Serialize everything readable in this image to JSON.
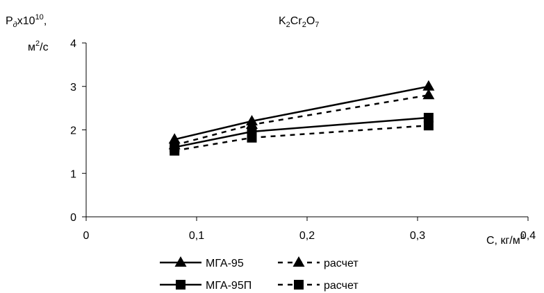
{
  "chart_data": {
    "type": "line",
    "title": "K2Cr2O7",
    "ylabel": "Pдx10^10, м^2/с",
    "xlabel": "C, кг/м^3",
    "xlim": [
      0,
      0.4
    ],
    "ylim": [
      0,
      4
    ],
    "x_ticks": [
      "0",
      "0,1",
      "0,2",
      "0,3",
      "0,4"
    ],
    "y_ticks": [
      "0",
      "1",
      "2",
      "3",
      "4"
    ],
    "grid": false,
    "legend_position": "bottom",
    "series": [
      {
        "name": "МГА-95",
        "marker": "triangle",
        "dash": "solid",
        "x": [
          0.08,
          0.15,
          0.31
        ],
        "y": [
          1.78,
          2.2,
          3.0
        ]
      },
      {
        "name": "расчет",
        "marker": "triangle",
        "dash": "dashed",
        "x": [
          0.08,
          0.15,
          0.31
        ],
        "y": [
          1.65,
          2.12,
          2.8
        ]
      },
      {
        "name": "МГА-95П",
        "marker": "square",
        "dash": "solid",
        "x": [
          0.08,
          0.15,
          0.31
        ],
        "y": [
          1.6,
          1.96,
          2.28
        ]
      },
      {
        "name": "расчет",
        "marker": "square",
        "dash": "dashed",
        "x": [
          0.08,
          0.15,
          0.31
        ],
        "y": [
          1.52,
          1.82,
          2.1
        ]
      }
    ]
  }
}
